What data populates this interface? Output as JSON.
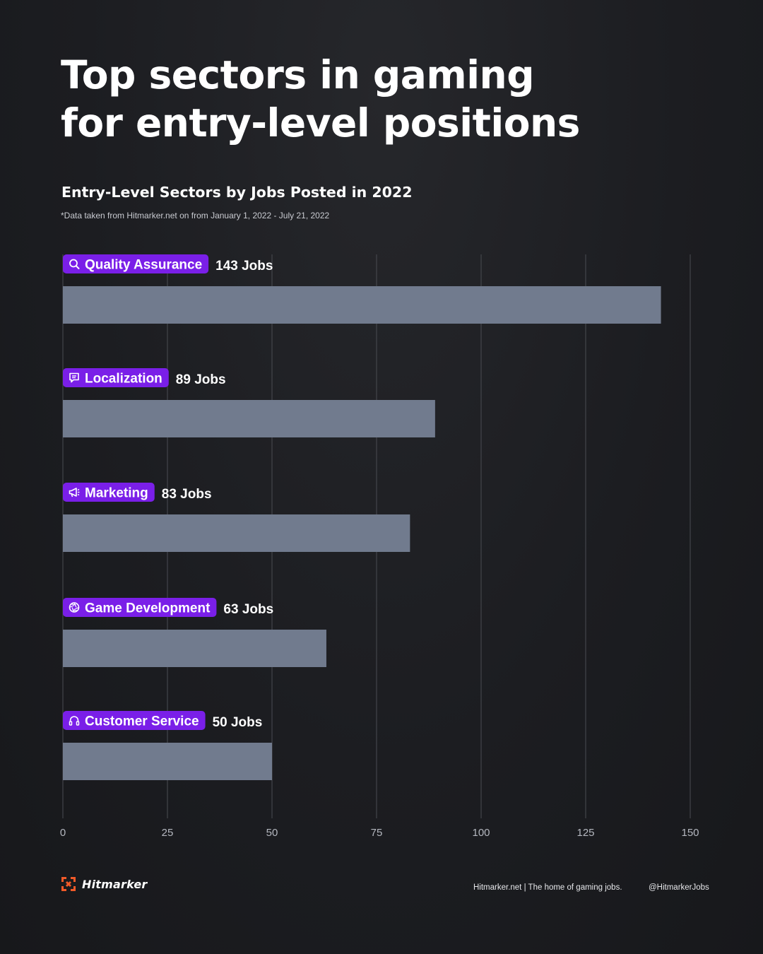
{
  "header": {
    "title_line1": "Top sectors in gaming",
    "title_line2": "for entry-level positions",
    "subtitle": "Entry-Level Sectors by Jobs Posted in 2022",
    "footnote": "*Data taken from Hitmarker.net on from January 1, 2022 - July 21, 2022"
  },
  "chart_data": {
    "type": "bar",
    "orientation": "horizontal",
    "categories": [
      "Quality Assurance",
      "Localization",
      "Marketing",
      "Game Development",
      "Customer Service"
    ],
    "values": [
      143,
      89,
      83,
      63,
      50
    ],
    "value_labels": [
      "143 Jobs",
      "89 Jobs",
      "83 Jobs",
      "63 Jobs",
      "50 Jobs"
    ],
    "category_icons": [
      "search-icon",
      "chat-icon",
      "megaphone-icon",
      "aperture-icon",
      "headset-icon"
    ],
    "xlim": [
      0,
      150
    ],
    "xticks": [
      "0",
      "25",
      "50",
      "75",
      "100",
      "125",
      "150"
    ],
    "grid": true,
    "colors": {
      "bar": "#717b8e",
      "badge": "#7a1fe8"
    }
  },
  "footer": {
    "brand": "Hitmarker",
    "brand_color": "#f05a28",
    "tagline": "Hitmarker.net | The home of gaming jobs.",
    "handle": "@HitmarkerJobs"
  }
}
